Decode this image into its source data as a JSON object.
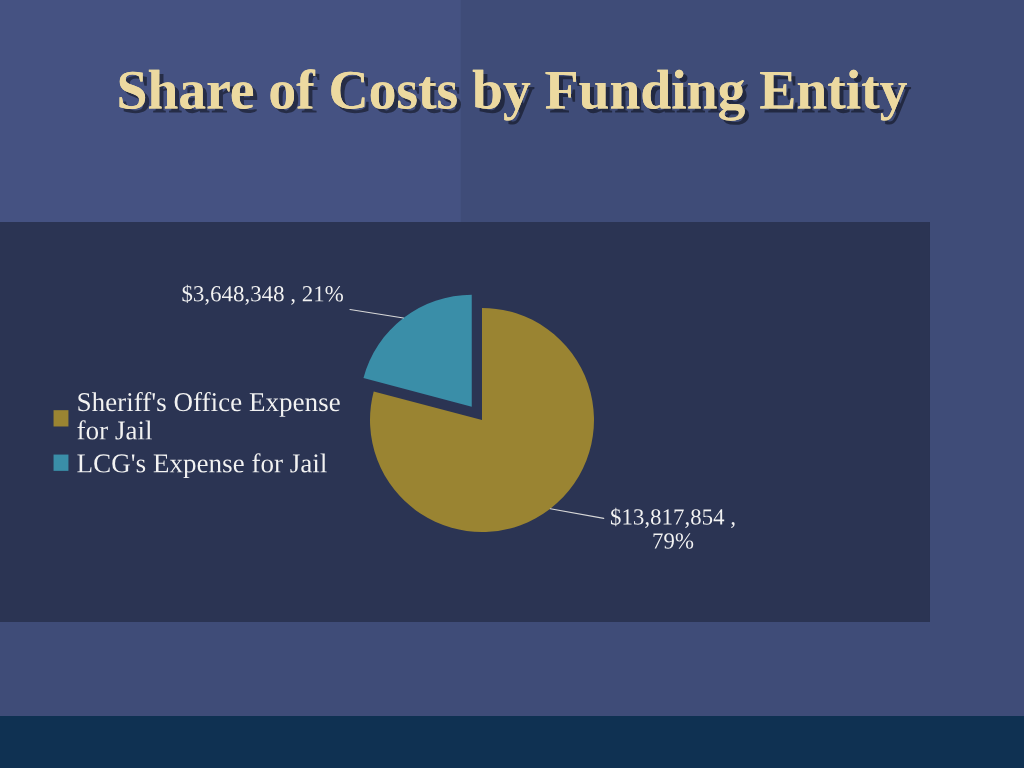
{
  "chart_data": {
    "type": "pie",
    "title": "Share of Costs by Funding Entity",
    "categories": [
      "Sheriff's Office Expense for Jail",
      "LCG's Expense for Jail"
    ],
    "values": [
      13817854,
      3648348
    ],
    "colors": [
      "#9a8432",
      "#3a8ea8"
    ],
    "value_labels": [
      "$13,817,854 , 79%",
      "$3,648,348 , 21%"
    ],
    "legend": "left"
  }
}
